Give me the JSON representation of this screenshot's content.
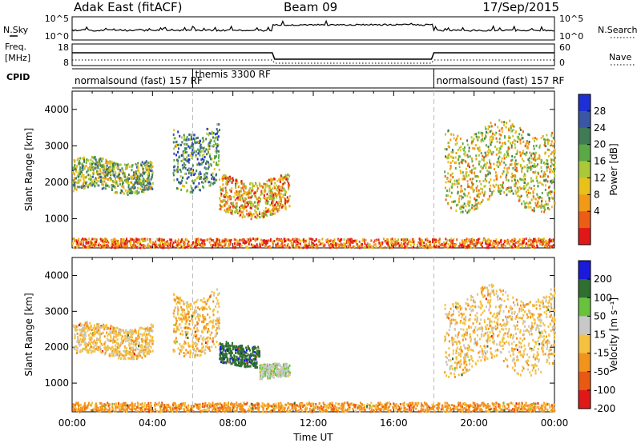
{
  "header": {
    "radar": "Adak East (fitACF)",
    "beam": "Beam 09",
    "date": "17/Sep/2015"
  },
  "params": {
    "nsky_label": "N.Sky",
    "nsearch_label": "N.Search",
    "nsky_ticks": [
      "10^5",
      "10^0"
    ],
    "nsearch_ticks": [
      "10^5",
      "10^0"
    ],
    "freq_label": [
      "Freq.",
      "[MHz]"
    ],
    "freq_ticks": [
      "18",
      "8"
    ],
    "nave_label": "Nave",
    "nave_ticks": [
      "60",
      "0"
    ],
    "cpid_label": "CPID",
    "modes": [
      {
        "name": "normalsound (fast) 157 RF",
        "start_hour": 0,
        "end_hour": 6
      },
      {
        "name": "themis 3300 RF",
        "start_hour": 6,
        "end_hour": 18
      },
      {
        "name": "normalsound (fast) 157 RF",
        "start_hour": 18,
        "end_hour": 24
      }
    ]
  },
  "xaxis": {
    "label": "Time UT",
    "ticks": [
      "00:00",
      "04:00",
      "08:00",
      "12:00",
      "16:00",
      "20:00",
      "00:00"
    ]
  },
  "colors": {
    "power": [
      "#1f2fd6",
      "#3a57a6",
      "#3f7c55",
      "#5ba847",
      "#a9c93a",
      "#e9c11b",
      "#f29a18",
      "#ec5d16",
      "#e01818"
    ],
    "velocity": [
      "#1a1adb",
      "#2f6f2f",
      "#69c23e",
      "#c8c8c8",
      "#f5c23f",
      "#f2931d",
      "#e85a14",
      "#e01818"
    ]
  },
  "chart_data": [
    {
      "type": "heatmap",
      "panel": "power",
      "ylabel": "Slant Range [km]",
      "ylim": [
        200,
        4500
      ],
      "yticks": [
        1000,
        2000,
        3000,
        4000
      ],
      "xlim_hours": [
        0,
        24
      ],
      "colorbar": {
        "label": "Power [dB]",
        "ticks": [
          "28",
          "24",
          "20",
          "16",
          "12",
          "8",
          "4"
        ],
        "range": [
          0,
          32
        ]
      },
      "features": [
        {
          "start_hour": 0.0,
          "end_hour": 4.0,
          "range_low": 1750,
          "range_high": 2600,
          "level": 18
        },
        {
          "start_hour": 5.0,
          "end_hour": 7.3,
          "range_low": 1900,
          "range_high": 3500,
          "level": 22
        },
        {
          "start_hour": 7.3,
          "end_hour": 10.8,
          "range_low": 1100,
          "range_high": 2100,
          "level": 10
        },
        {
          "start_hour": 18.5,
          "end_hour": 24.0,
          "range_low": 1400,
          "range_high": 3500,
          "level": 14
        },
        {
          "start_hour": 0.0,
          "end_hour": 24.0,
          "range_low": 200,
          "range_high": 450,
          "level": 6
        }
      ]
    },
    {
      "type": "heatmap",
      "panel": "velocity",
      "ylabel": "Slant Range [km]",
      "ylim": [
        200,
        4500
      ],
      "yticks": [
        1000,
        2000,
        3000,
        4000
      ],
      "xlim_hours": [
        0,
        24
      ],
      "colorbar": {
        "label": "Velocity [m s⁻¹]",
        "ticks": [
          "200",
          "100",
          "50",
          "15",
          "-15",
          "-50",
          "-100",
          "-200"
        ],
        "range": [
          -250,
          250
        ]
      },
      "features": [
        {
          "start_hour": 0.0,
          "end_hour": 4.0,
          "range_low": 1750,
          "range_high": 2600,
          "velocity": 0
        },
        {
          "start_hour": 5.0,
          "end_hour": 7.3,
          "range_low": 1900,
          "range_high": 3500,
          "velocity": -5
        },
        {
          "start_hour": 7.3,
          "end_hour": 9.3,
          "range_low": 1500,
          "range_high": 2100,
          "velocity": 180
        },
        {
          "start_hour": 9.3,
          "end_hour": 10.8,
          "range_low": 1100,
          "range_high": 1500,
          "velocity": 40
        },
        {
          "start_hour": 18.5,
          "end_hour": 24.0,
          "range_low": 1400,
          "range_high": 3500,
          "velocity": 0
        },
        {
          "start_hour": 0.0,
          "end_hour": 24.0,
          "range_low": 200,
          "range_high": 450,
          "velocity": -30
        }
      ]
    }
  ]
}
